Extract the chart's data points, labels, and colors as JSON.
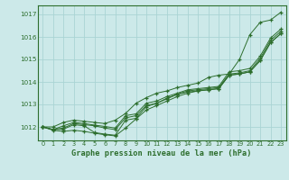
{
  "title": "Graphe pression niveau de la mer (hPa)",
  "bg_color": "#cce9e9",
  "grid_color": "#aad4d4",
  "line_color": "#2d6e2d",
  "marker_color": "#2d6e2d",
  "xlim": [
    -0.5,
    23.5
  ],
  "ylim": [
    1011.4,
    1017.4
  ],
  "yticks": [
    1012,
    1013,
    1014,
    1015,
    1016,
    1017
  ],
  "xticks": [
    0,
    1,
    2,
    3,
    4,
    5,
    6,
    7,
    8,
    9,
    10,
    11,
    12,
    13,
    14,
    15,
    16,
    17,
    18,
    19,
    20,
    21,
    22,
    23
  ],
  "series": [
    [
      1012.0,
      1012.0,
      1012.2,
      1012.3,
      1012.25,
      1012.2,
      1012.15,
      1012.3,
      1012.6,
      1013.05,
      1013.3,
      1013.5,
      1013.6,
      1013.75,
      1013.85,
      1013.95,
      1014.2,
      1014.3,
      1014.35,
      1015.0,
      1016.1,
      1016.65,
      1016.75,
      1017.1
    ],
    [
      1012.0,
      1011.85,
      1011.8,
      1011.85,
      1011.8,
      1011.72,
      1011.65,
      1011.6,
      1011.95,
      1012.35,
      1012.75,
      1012.95,
      1013.15,
      1013.35,
      1013.5,
      1013.6,
      1013.65,
      1013.7,
      1014.3,
      1014.35,
      1014.45,
      1014.95,
      1015.75,
      1016.15
    ],
    [
      1012.0,
      1011.88,
      1011.9,
      1012.1,
      1012.05,
      1011.75,
      1011.68,
      1011.63,
      1012.3,
      1012.38,
      1012.9,
      1013.05,
      1013.25,
      1013.45,
      1013.55,
      1013.6,
      1013.65,
      1013.7,
      1014.3,
      1014.35,
      1014.45,
      1014.95,
      1015.75,
      1016.15
    ],
    [
      1012.0,
      1011.88,
      1011.95,
      1012.15,
      1012.1,
      1012.05,
      1011.95,
      1011.88,
      1012.4,
      1012.5,
      1012.95,
      1013.05,
      1013.28,
      1013.45,
      1013.6,
      1013.65,
      1013.7,
      1013.75,
      1014.35,
      1014.4,
      1014.5,
      1015.05,
      1015.85,
      1016.25
    ],
    [
      1012.0,
      1011.88,
      1012.05,
      1012.2,
      1012.15,
      1012.08,
      1012.02,
      1011.95,
      1012.5,
      1012.58,
      1013.05,
      1013.15,
      1013.35,
      1013.5,
      1013.65,
      1013.7,
      1013.75,
      1013.8,
      1014.45,
      1014.5,
      1014.6,
      1015.15,
      1015.95,
      1016.35
    ]
  ]
}
